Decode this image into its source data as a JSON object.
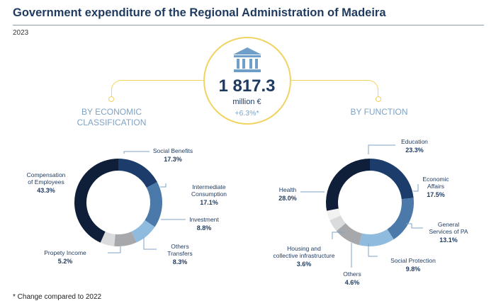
{
  "title": "Government expenditure of the Regional Administration of Madeira",
  "year": "2023",
  "total": {
    "value": "1 817.3",
    "unit": "million €",
    "change": "+6.3%*"
  },
  "footnote": "* Change compared to 2022",
  "icon": "bank-building-icon",
  "colors": {
    "navy": "#0f1f3a",
    "dark_blue": "#1c3d6b",
    "mid_blue": "#4a79aa",
    "light_blue": "#8fbbdf",
    "gray": "#a6a8ab",
    "light_gray": "#dadbdc",
    "accent_yellow": "#f1d362"
  },
  "chart_data": [
    {
      "type": "pie",
      "donut": true,
      "title": "BY ECONOMIC CLASSIFICATION",
      "unit": "%",
      "segments": [
        {
          "name": "Social Benefits",
          "value": 17.3,
          "label": "17.3%",
          "color": "#1c3d6b"
        },
        {
          "name": "Intermediate Consumption",
          "value": 17.1,
          "label": "17.1%",
          "color": "#4a79aa"
        },
        {
          "name": "Investment",
          "value": 8.8,
          "label": "8.8%",
          "color": "#8fbbdf"
        },
        {
          "name": "Others Transfers",
          "value": 8.3,
          "label": "8.3%",
          "color": "#a6a8ab"
        },
        {
          "name": "Propety Income",
          "value": 5.2,
          "label": "5.2%",
          "color": "#dadbdc"
        },
        {
          "name": "Compensation of Employees",
          "value": 43.3,
          "label": "43.3%",
          "color": "#0f1f3a"
        }
      ]
    },
    {
      "type": "pie",
      "donut": true,
      "title": "BY FUNCTION",
      "unit": "%",
      "segments": [
        {
          "name": "Education",
          "value": 23.3,
          "label": "23.3%",
          "color": "#1c3d6b"
        },
        {
          "name": "Economic Affairs",
          "value": 17.5,
          "label": "17.5%",
          "color": "#4a79aa"
        },
        {
          "name": "General Services of PA",
          "value": 13.1,
          "label": "13.1%",
          "color": "#8fbbdf"
        },
        {
          "name": "Social Protection",
          "value": 9.8,
          "label": "9.8%",
          "color": "#a6a8ab"
        },
        {
          "name": "Others",
          "value": 4.6,
          "label": "4.6%",
          "color": "#dadbdc"
        },
        {
          "name": "Housing and collective infrastructure",
          "value": 3.6,
          "label": "3.6%",
          "color": "#f2f2f2"
        },
        {
          "name": "Health",
          "value": 28.0,
          "label": "28.0%",
          "color": "#0f1f3a"
        }
      ]
    }
  ]
}
